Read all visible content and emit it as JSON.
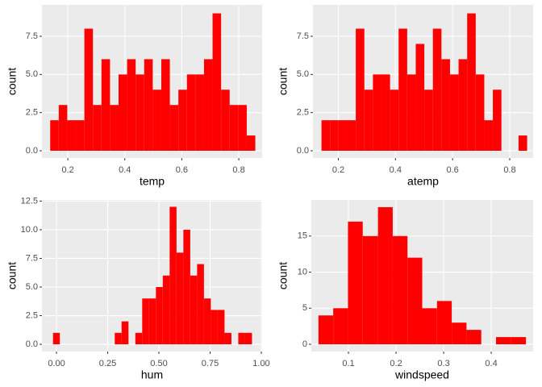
{
  "chart_data": [
    {
      "type": "histogram",
      "x_label": "temp",
      "y_label": "count",
      "color": "#ff0000",
      "bins": [
        0.138,
        0.168,
        0.198,
        0.228,
        0.258,
        0.288,
        0.318,
        0.348,
        0.378,
        0.408,
        0.438,
        0.468,
        0.498,
        0.528,
        0.558,
        0.588,
        0.618,
        0.648,
        0.678,
        0.708,
        0.738,
        0.768,
        0.798,
        0.828,
        0.858
      ],
      "values": [
        2,
        3,
        2,
        2,
        8,
        3,
        6,
        3,
        5,
        6,
        5,
        6,
        4,
        6,
        3,
        4,
        5,
        5,
        6,
        9,
        4,
        3,
        3,
        1
      ],
      "xlim": [
        0.109,
        0.882
      ],
      "ylim": [
        -0.475,
        9.56
      ],
      "xticks": [
        0.2,
        0.4,
        0.6,
        0.8
      ],
      "yticks": [
        {
          "value": 0,
          "label": "0.0"
        },
        {
          "value": 2.5,
          "label": "2.5"
        },
        {
          "value": 5,
          "label": "5.0"
        },
        {
          "value": 7.5,
          "label": "7.5"
        }
      ],
      "grid": true
    },
    {
      "type": "histogram",
      "x_label": "atemp",
      "y_label": "count",
      "color": "#ff0000",
      "bins": [
        0.141,
        0.171,
        0.201,
        0.231,
        0.261,
        0.291,
        0.321,
        0.351,
        0.381,
        0.411,
        0.441,
        0.471,
        0.501,
        0.531,
        0.561,
        0.591,
        0.621,
        0.651,
        0.681,
        0.711,
        0.741,
        0.771,
        0.801,
        0.831,
        0.861
      ],
      "values": [
        2,
        2,
        2,
        2,
        8,
        4,
        5,
        5,
        4,
        8,
        5,
        7,
        4,
        8,
        6,
        5,
        6,
        9,
        5,
        2,
        4,
        0,
        0,
        1
      ],
      "xlim": [
        0.111,
        0.882
      ],
      "ylim": [
        -0.475,
        9.56
      ],
      "xticks": [
        0.2,
        0.4,
        0.6,
        0.8
      ],
      "yticks": [
        {
          "value": 0,
          "label": "0.0"
        },
        {
          "value": 2.5,
          "label": "2.5"
        },
        {
          "value": 5,
          "label": "5.0"
        },
        {
          "value": 7.5,
          "label": "7.5"
        }
      ],
      "grid": true
    },
    {
      "type": "histogram",
      "x_label": "hum",
      "y_label": "count",
      "color": "#ff0000",
      "bins": [
        -0.017,
        0.0165,
        0.05,
        0.0835,
        0.117,
        0.1505,
        0.184,
        0.2175,
        0.251,
        0.2845,
        0.318,
        0.3515,
        0.385,
        0.4185,
        0.452,
        0.4855,
        0.519,
        0.5525,
        0.586,
        0.6195,
        0.653,
        0.6865,
        0.72,
        0.7535,
        0.787,
        0.8205,
        0.854,
        0.8875,
        0.921,
        0.9545
      ],
      "values": [
        1,
        0,
        0,
        0,
        0,
        0,
        0,
        0,
        0,
        1,
        2,
        0,
        1,
        4,
        4,
        5,
        6,
        12,
        8,
        10,
        6,
        7,
        4,
        3,
        3,
        1,
        0,
        1,
        1
      ],
      "xlim": [
        -0.071,
        1.004
      ],
      "ylim": [
        -0.63,
        12.6
      ],
      "xticks": [
        {
          "value": 0,
          "label": "0.00"
        },
        {
          "value": 0.25,
          "label": "0.25"
        },
        {
          "value": 0.5,
          "label": "0.50"
        },
        {
          "value": 0.75,
          "label": "0.75"
        },
        {
          "value": 1,
          "label": "1.00"
        }
      ],
      "yticks": [
        {
          "value": 0,
          "label": "0.0"
        },
        {
          "value": 2.5,
          "label": "2.5"
        },
        {
          "value": 5,
          "label": "5.0"
        },
        {
          "value": 7.5,
          "label": "7.5"
        },
        {
          "value": 10,
          "label": "10.0"
        },
        {
          "value": 12.5,
          "label": "12.5"
        }
      ],
      "grid": true
    },
    {
      "type": "histogram",
      "x_label": "windspeed",
      "y_label": "count",
      "color": "#ff0000",
      "bins": [
        0.037,
        0.068,
        0.099,
        0.13,
        0.162,
        0.193,
        0.224,
        0.255,
        0.286,
        0.317,
        0.348,
        0.379,
        0.41,
        0.442,
        0.473
      ],
      "values": [
        4,
        5,
        17,
        15,
        19,
        15,
        12,
        5,
        6,
        3,
        2,
        0,
        1,
        1
      ],
      "xlim": [
        0.022,
        0.488
      ],
      "ylim": [
        -1,
        20
      ],
      "xticks": [
        0.1,
        0.2,
        0.3,
        0.4
      ],
      "yticks": [
        0,
        5,
        10,
        15
      ],
      "grid": true
    }
  ]
}
